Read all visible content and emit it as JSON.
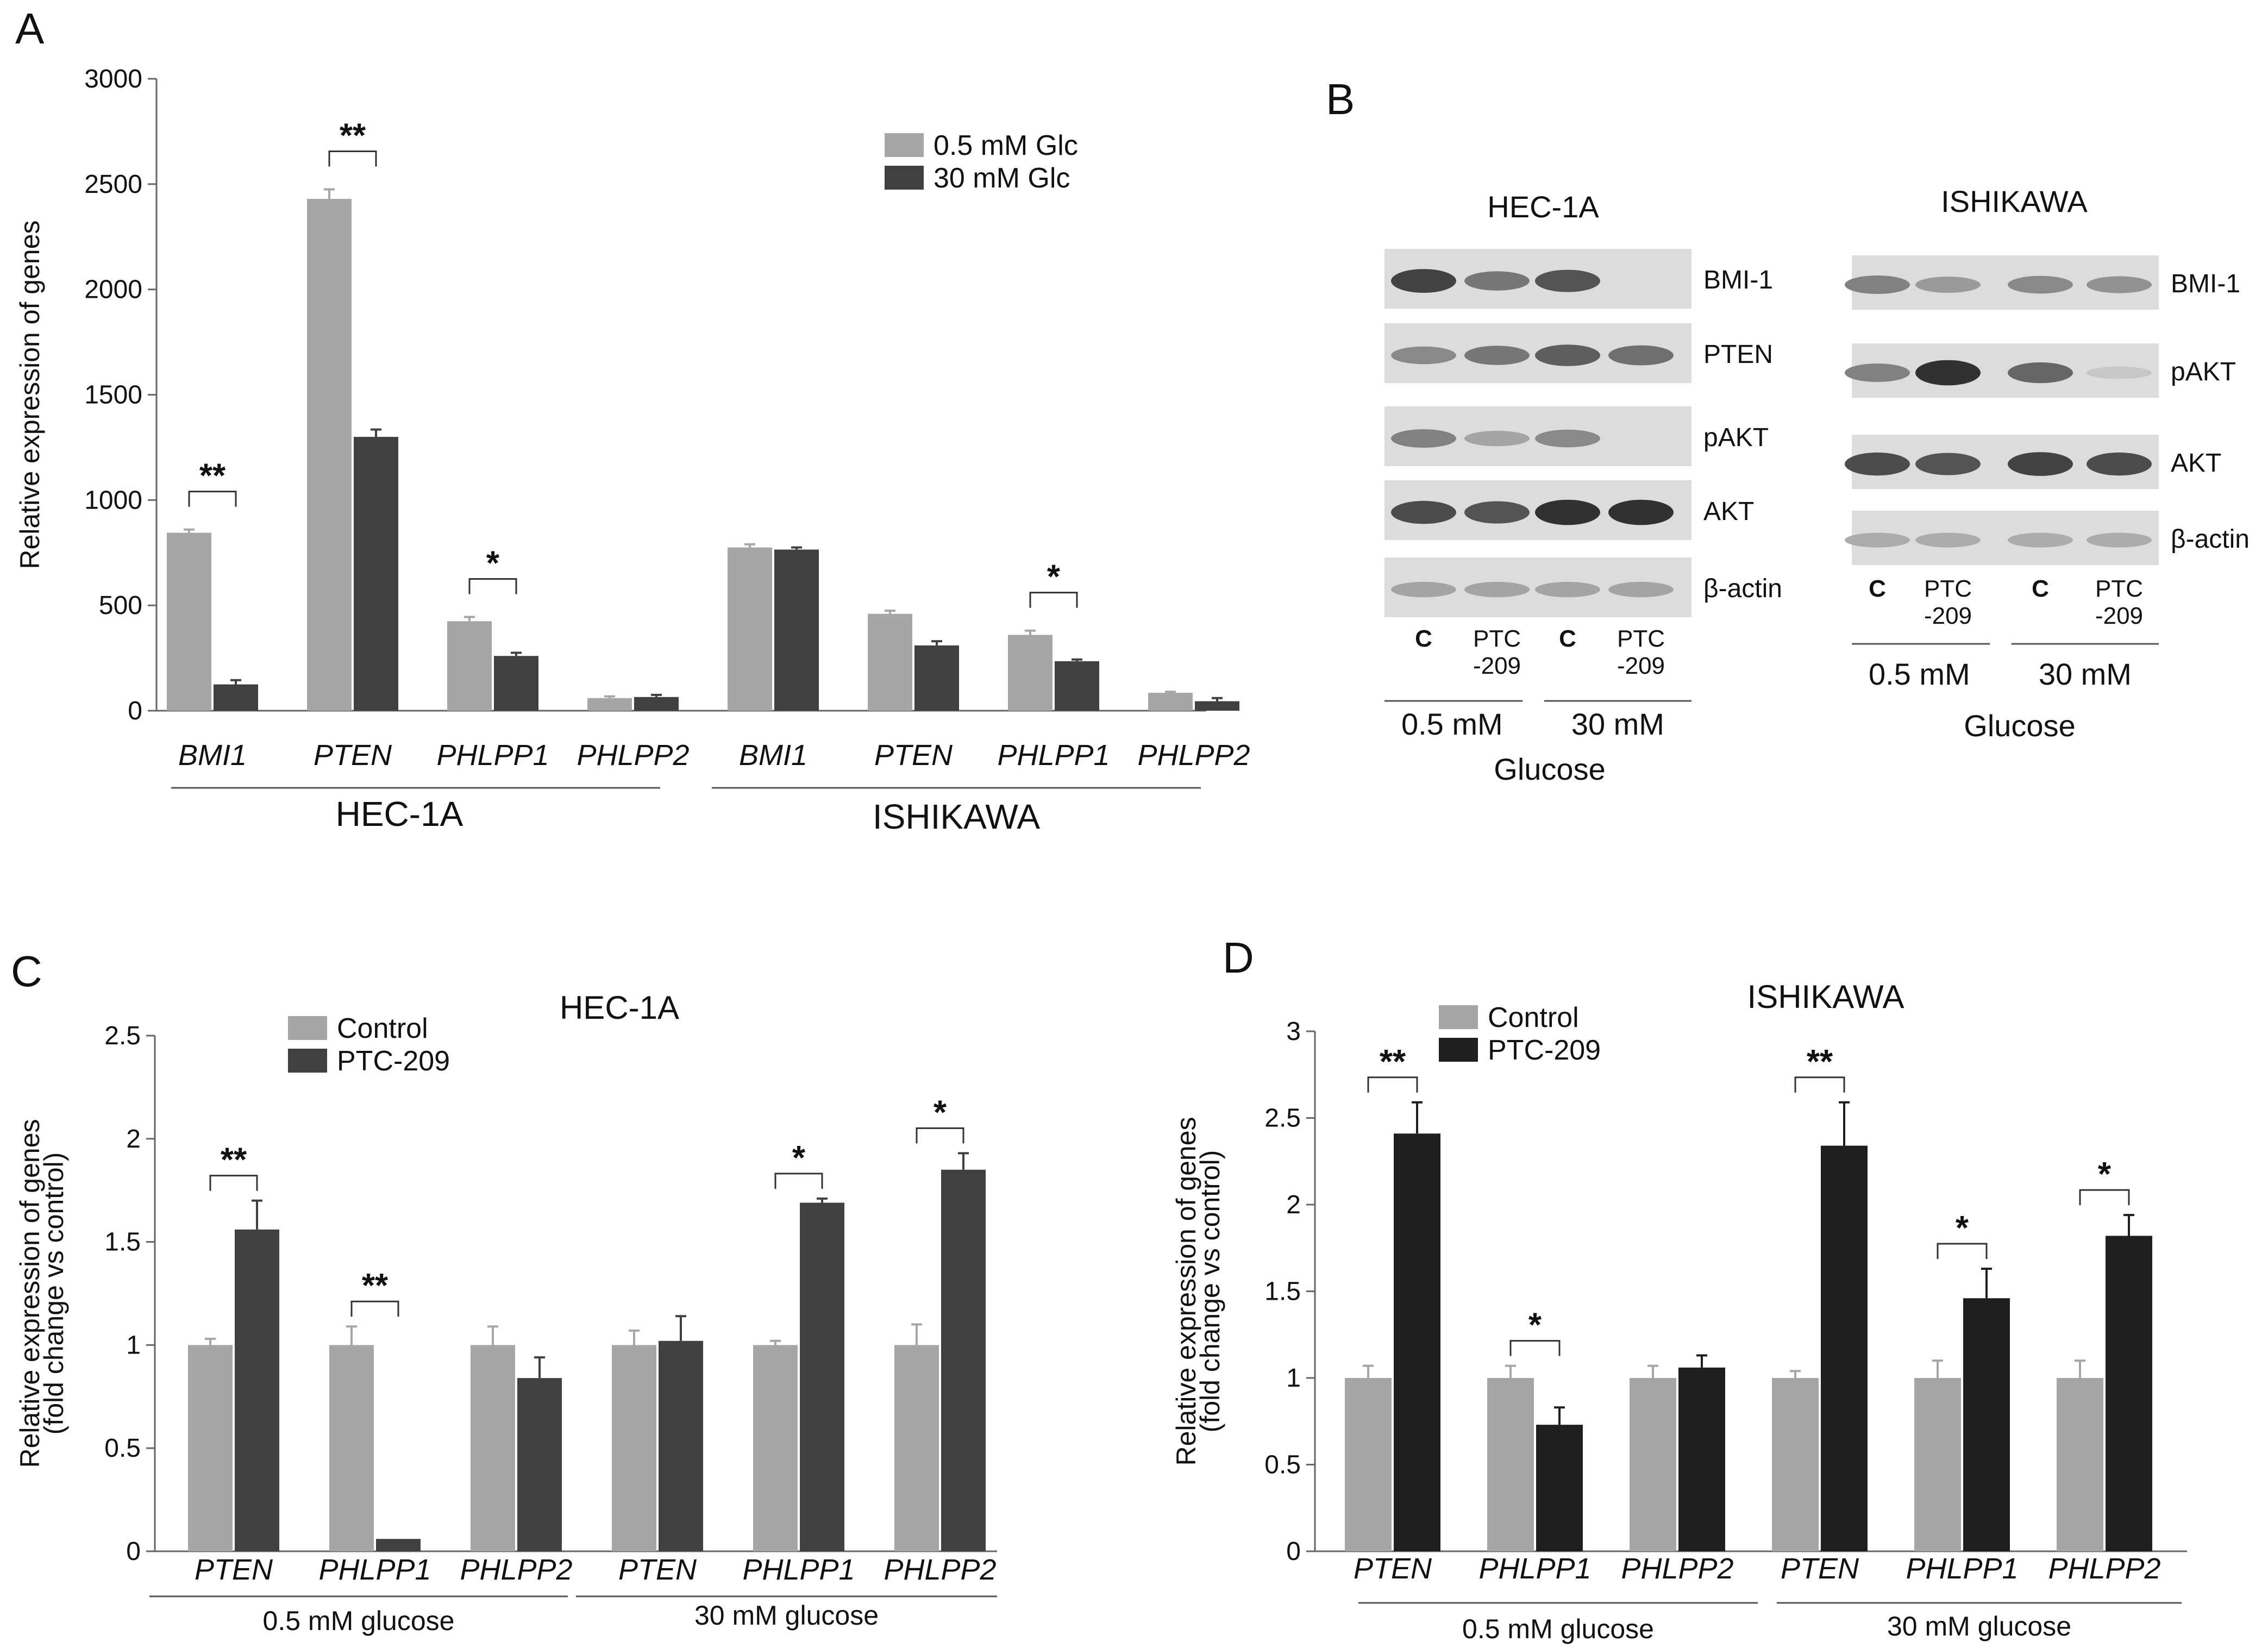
{
  "colors": {
    "light": "#a6a6a6",
    "dark": "#404040",
    "black": "#1e1e1e",
    "axis": "#666666"
  },
  "chart_data": [
    {
      "panel": "A",
      "type": "bar",
      "ylabel": "Relative expression of genes",
      "ylim": [
        0,
        3000
      ],
      "yticks": [
        "0",
        "500",
        "1000",
        "1500",
        "2000",
        "2500",
        "3000"
      ],
      "categories": [
        "BMI1",
        "PTEN",
        "PHLPP1",
        "PHLPP2",
        "BMI1",
        "PTEN",
        "PHLPP1",
        "PHLPP2"
      ],
      "groups": [
        "HEC-1A",
        "ISHIKAWA"
      ],
      "series": [
        {
          "name": "0.5 mM Glc",
          "values": [
            845,
            2430,
            425,
            60,
            775,
            460,
            360,
            85
          ],
          "errors": [
            15,
            45,
            20,
            8,
            15,
            15,
            20,
            5
          ]
        },
        {
          "name": "30 mM Glc",
          "values": [
            125,
            1300,
            260,
            65,
            765,
            310,
            235,
            45
          ],
          "errors": [
            20,
            35,
            15,
            10,
            10,
            20,
            8,
            15
          ]
        }
      ],
      "significance": [
        {
          "category": 0,
          "label": "**"
        },
        {
          "category": 1,
          "label": "**"
        },
        {
          "category": 2,
          "label": "*"
        },
        {
          "category": 6,
          "label": "*"
        }
      ]
    },
    {
      "panel": "C",
      "type": "bar",
      "title": "HEC-1A",
      "ylabel": "Relative expression of genes",
      "ylabel2": "(fold change vs control)",
      "ylim": [
        0,
        2.5
      ],
      "yticks": [
        "0",
        "0.5",
        "1",
        "1.5",
        "2",
        "2.5"
      ],
      "categories": [
        "PTEN",
        "PHLPP1",
        "PHLPP2",
        "PTEN",
        "PHLPP1",
        "PHLPP2"
      ],
      "groups": [
        "0.5 mM glucose",
        "30 mM glucose"
      ],
      "series": [
        {
          "name": "Control",
          "values": [
            1,
            1,
            1,
            1,
            1,
            1
          ],
          "errors": [
            0.03,
            0.09,
            0.09,
            0.07,
            0.02,
            0.1
          ]
        },
        {
          "name": "PTC-209",
          "values": [
            1.56,
            0.06,
            0.84,
            1.02,
            1.69,
            1.85
          ],
          "errors": [
            0.14,
            0.0,
            0.1,
            0.12,
            0.02,
            0.08
          ]
        }
      ],
      "significance": [
        {
          "category": 0,
          "label": "**"
        },
        {
          "category": 1,
          "label": "**"
        },
        {
          "category": 4,
          "label": "*"
        },
        {
          "category": 5,
          "label": "*"
        }
      ]
    },
    {
      "panel": "D",
      "type": "bar",
      "title": "ISHIKAWA",
      "ylabel": "Relative expression of genes",
      "ylabel2": "(fold change vs control)",
      "ylim": [
        0,
        3
      ],
      "yticks": [
        "0",
        "0.5",
        "1",
        "1.5",
        "2",
        "2.5",
        "3"
      ],
      "categories": [
        "PTEN",
        "PHLPP1",
        "PHLPP2",
        "PTEN",
        "PHLPP1",
        "PHLPP2"
      ],
      "groups": [
        "0.5 mM glucose",
        "30 mM glucose"
      ],
      "series": [
        {
          "name": "Control",
          "values": [
            1,
            1,
            1,
            1,
            1,
            1
          ],
          "errors": [
            0.07,
            0.07,
            0.07,
            0.04,
            0.1,
            0.1
          ]
        },
        {
          "name": "PTC-209",
          "values": [
            2.41,
            0.73,
            1.06,
            2.34,
            1.46,
            1.82
          ],
          "errors": [
            0.18,
            0.1,
            0.07,
            0.25,
            0.17,
            0.12
          ]
        }
      ],
      "significance": [
        {
          "category": 0,
          "label": "**"
        },
        {
          "category": 1,
          "label": "*"
        },
        {
          "category": 3,
          "label": "**"
        },
        {
          "category": 4,
          "label": "*"
        },
        {
          "category": 5,
          "label": "*"
        }
      ]
    }
  ],
  "panel_labels": {
    "a": "A",
    "b": "B",
    "c": "C",
    "d": "D"
  },
  "blots": {
    "hec": {
      "title": "HEC-1A",
      "proteins": [
        "BMI-1",
        "PTEN",
        "pAKT",
        "AKT",
        "β-actin"
      ],
      "lanes": [
        "C",
        "PTC",
        "-209",
        "C",
        "PTC",
        "-209"
      ],
      "lane_intensity": [
        [
          0.85,
          0.55,
          0.75,
          0.0
        ],
        [
          0.45,
          0.55,
          0.7,
          0.6
        ],
        [
          0.5,
          0.3,
          0.45,
          0.0
        ],
        [
          0.8,
          0.75,
          0.95,
          0.95
        ],
        [
          0.3,
          0.3,
          0.3,
          0.3
        ]
      ],
      "conditions": [
        "0.5 mM",
        "30 mM"
      ],
      "footer": "Glucose"
    },
    "ish": {
      "title": "ISHIKAWA",
      "proteins": [
        "BMI-1",
        "pAKT",
        "AKT",
        "β-actin"
      ],
      "lanes": [
        "C",
        "PTC",
        "-209",
        "C",
        "PTC",
        "-209"
      ],
      "lane_intensity": [
        [
          0.5,
          0.35,
          0.45,
          0.4
        ],
        [
          0.5,
          0.95,
          0.65,
          0.1
        ],
        [
          0.8,
          0.75,
          0.85,
          0.8
        ],
        [
          0.25,
          0.25,
          0.25,
          0.25
        ]
      ],
      "conditions": [
        "0.5 mM",
        "30 mM"
      ],
      "footer": "Glucose"
    }
  }
}
